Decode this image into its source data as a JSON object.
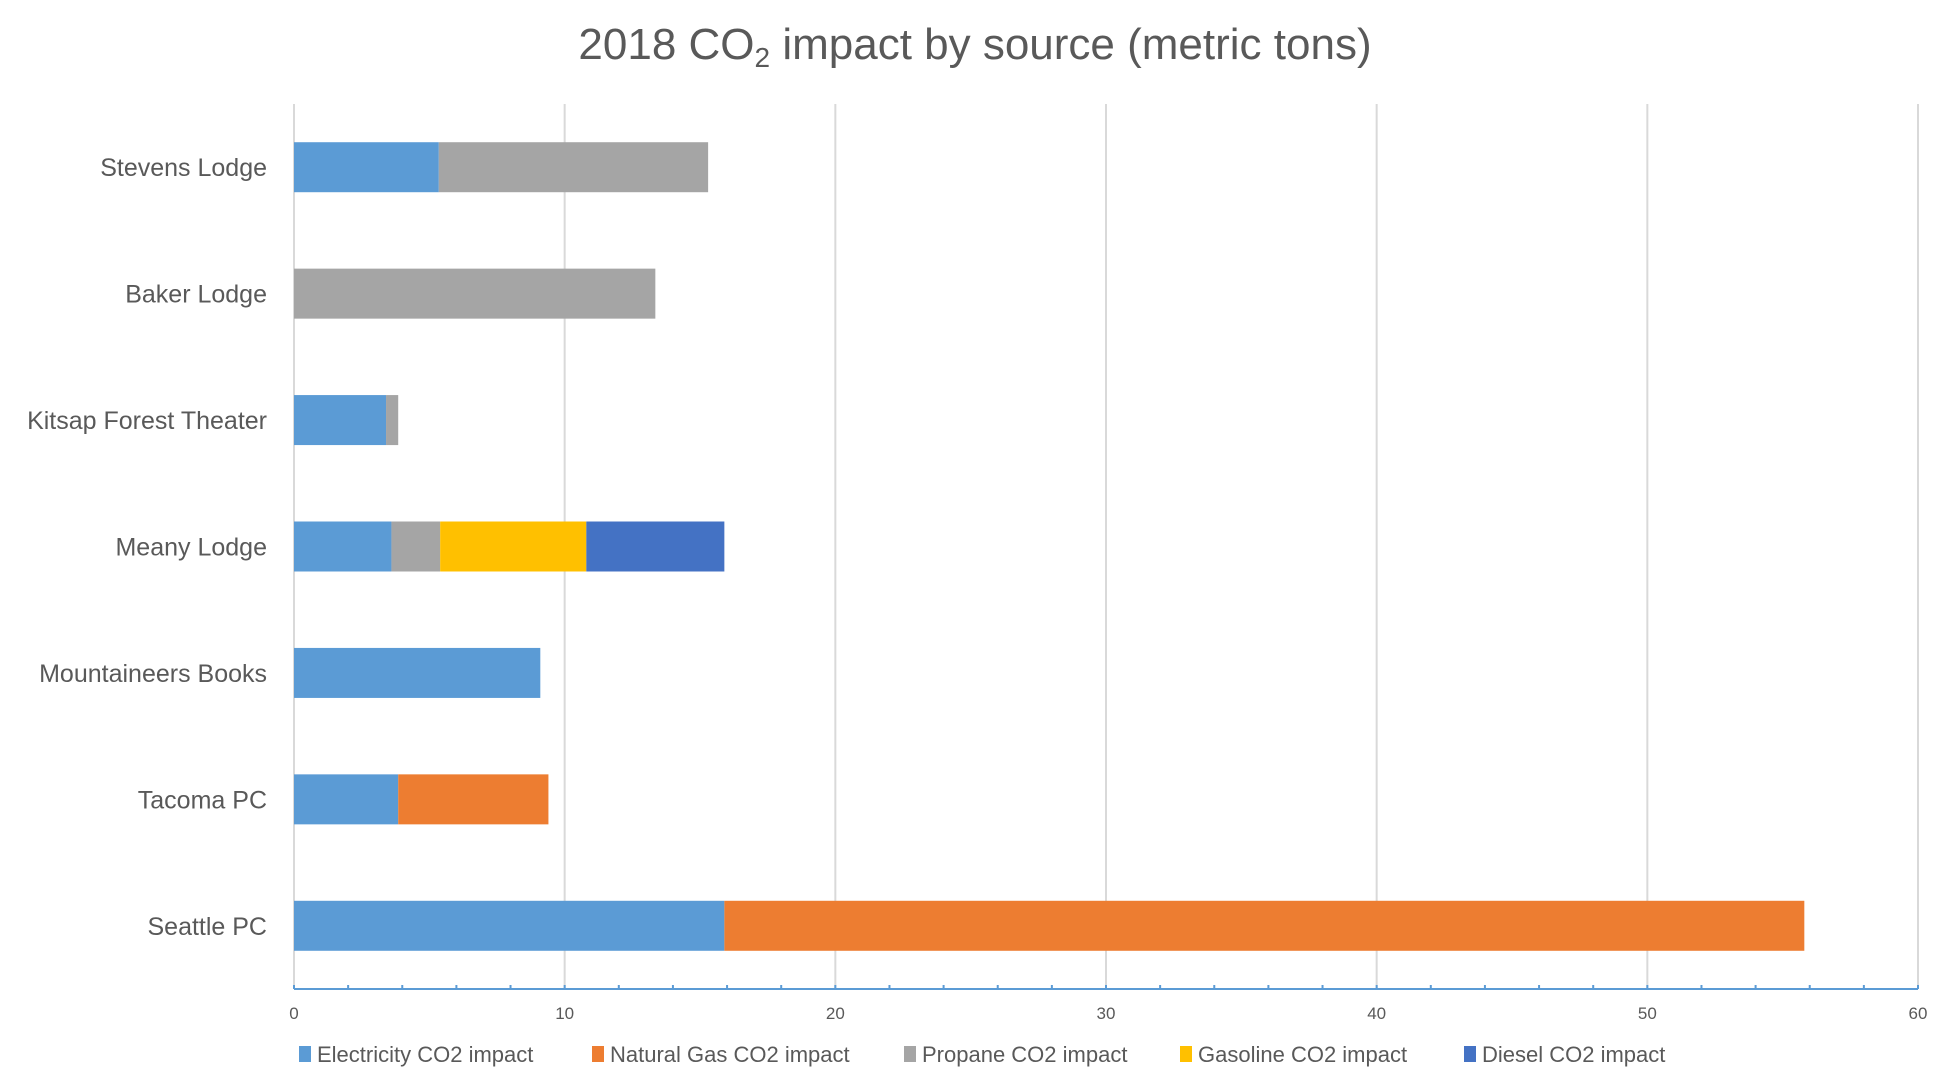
{
  "chart_data": {
    "type": "bar",
    "orientation": "horizontal",
    "stacked": true,
    "title": "2018 CO2 impact by source (metric tons)",
    "title_parts": {
      "before": "2018 CO",
      "sub": "2",
      "after": " impact by source (metric tons)"
    },
    "xlabel": "",
    "ylabel": "",
    "xlim": [
      0,
      60
    ],
    "x_ticks": [
      0,
      10,
      20,
      30,
      40,
      50,
      60
    ],
    "x_tick_labels": [
      "0",
      "10",
      "20",
      "30",
      "40",
      "50",
      "60"
    ],
    "minor_tick_step": 2,
    "grid": "vertical major gridlines",
    "legend_position": "bottom",
    "categories": [
      "Stevens Lodge",
      "Baker Lodge",
      "Kitsap Forest Theater",
      "Meany Lodge",
      "Mountaineers Books",
      "Tacoma PC",
      "Seattle PC"
    ],
    "series": [
      {
        "name": "Electricity CO2 impact",
        "color": "#5b9bd5",
        "values": [
          5.35,
          0,
          3.4,
          3.6,
          9.1,
          3.85,
          15.9
        ]
      },
      {
        "name": "Natural Gas CO2 impact",
        "color": "#ed7d31",
        "values": [
          0,
          0,
          0,
          0,
          0,
          5.55,
          39.9
        ]
      },
      {
        "name": "Propane CO2 impact",
        "color": "#a5a5a5",
        "values": [
          9.95,
          13.35,
          0.45,
          1.8,
          0,
          0,
          0
        ]
      },
      {
        "name": "Gasoline CO2 impact",
        "color": "#ffc000",
        "values": [
          0,
          0,
          0,
          5.4,
          0,
          0,
          0
        ]
      },
      {
        "name": "Diesel CO2 impact",
        "color": "#4472c4",
        "values": [
          0,
          0,
          0,
          5.1,
          0,
          0,
          0
        ]
      }
    ]
  }
}
